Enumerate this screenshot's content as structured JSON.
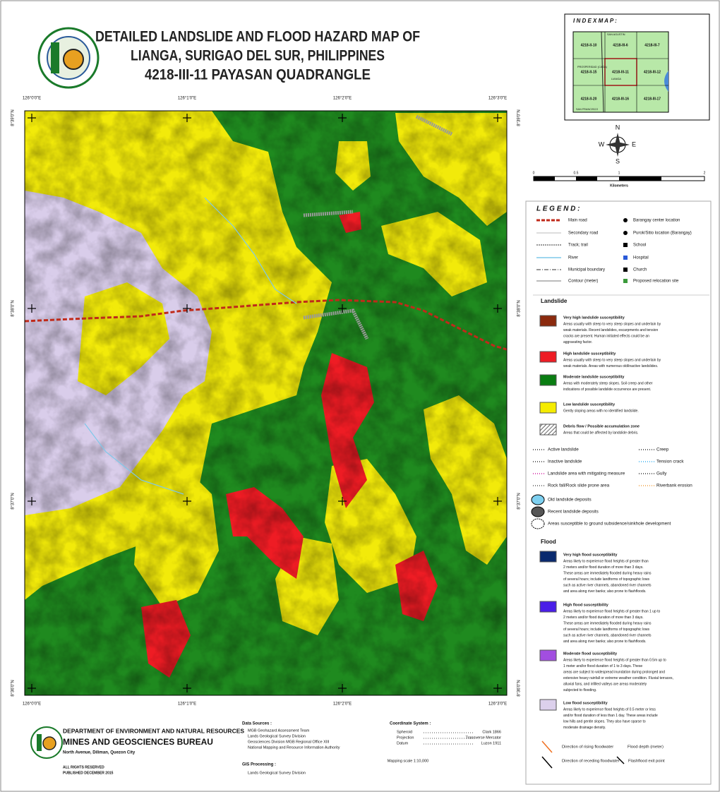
{
  "header": {
    "title_lines": [
      "DETAILED LANDSLIDE AND FLOOD HAZARD MAP OF",
      "LIANGA, SURIGAO DEL SUR, PHILIPPINES",
      "4218-III-11 PAYASAN QUADRANGLE"
    ]
  },
  "index_map": {
    "title": "I N D E X   M A P :",
    "sheets": [
      "4218-II-10",
      "4218-III-6",
      "4218-III-7",
      "4218-II-15",
      "4218-III-11",
      "4218-III-12",
      "4218-II-20",
      "4218-III-16",
      "4218-III-17"
    ],
    "places": [
      "SAN AGUSTIN",
      "PROSPERIDAD (CAGA)",
      "LIANGA",
      "SAN FRANCISCO"
    ]
  },
  "map_grid": {
    "longitudes": [
      "126°0'0\"E",
      "126°1'0\"E",
      "126°2'0\"E",
      "126°3'0\"E"
    ],
    "latitudes": [
      "8°39'0\"N",
      "8°38'0\"N",
      "8°37'0\"N",
      "8°36'0\"N"
    ]
  },
  "compass": {
    "north": "N",
    "east": "E",
    "south": "S",
    "west": "W"
  },
  "scale_bar": {
    "labels": [
      "0",
      "0.5",
      "1",
      "2"
    ],
    "unit": "Kilometers"
  },
  "legend": {
    "title": "L E G E N D :",
    "features": [
      "Main road",
      "Secondary road",
      "Track; trail",
      "River",
      "Municipal boundary",
      "Contour (meter)"
    ],
    "points": [
      "Barangay center location",
      "Purok/Sitio location (Barangay)",
      "School",
      "Hospital",
      "Church",
      "Proposed relocation site"
    ]
  },
  "landslide": {
    "title": "Landslide",
    "items": [
      {
        "color": "#8b2a0e",
        "title": "Very high landslide susceptibility",
        "description": [
          "Areas usually with steep to very steep slopes and underlain by",
          "weak materials. Recent landslides, escarpments and tension",
          "cracks are present. Human initiated effects could be an",
          "aggravating factor."
        ]
      },
      {
        "color": "#ee1c24",
        "title": "High landslide susceptibility",
        "description": [
          "Areas usually with steep to very steep slopes and underlain by",
          "weak materials. Areas with numerous old/inactive landslides."
        ]
      },
      {
        "color": "#0a7d12",
        "title": "Moderate landslide susceptibility",
        "description": [
          "Areas with moderately steep slopes. Soil creep and other",
          "indications of possible landslide occurrence are present."
        ]
      },
      {
        "color": "#f5ec00",
        "title": "Low landslide susceptibility",
        "description": [
          "Gently sloping areas with no identified landslide."
        ]
      },
      {
        "color": "hatch",
        "title": "Debris flow / Possible accumulation zone",
        "description": [
          "Areas that could be affected by landslide debris."
        ]
      }
    ],
    "line_symbols": [
      "Active landslide",
      "Creep",
      "Inactive landslide",
      "Tension crack",
      "Landslide area with mitigating measure",
      "Gully",
      "Rock fall/Rock slide prone area",
      "Riverbank erosion"
    ],
    "deposits": [
      "Old landslide deposits",
      "Recent landslide deposits",
      "Areas susceptible to ground subsidence/sinkhole development"
    ]
  },
  "flood": {
    "title": "Flood",
    "items": [
      {
        "color": "#0a2a6e",
        "title": "Very high flood susceptibility",
        "description": [
          "Areas likely to experience flood heights of greater than",
          "2 meters and/or flood duration of more than 3 days.",
          "These areas are immediately flooded during heavy rains",
          "of several hours; include landforms of topographic lows",
          "such as active river channels, abandoned river channels",
          "and area along river banks; also prone to flashfloods."
        ]
      },
      {
        "color": "#4a1ee8",
        "title": "High flood susceptibility",
        "description": [
          "Areas likely to experience flood heights of greater than 1 up to",
          "2 meters and/or flood duration of more than 3 days.",
          "These areas are immediately flooded during heavy rains",
          "of several hours; include landforms of topographic lows",
          "such as active river channels, abandoned river channels",
          "and area along river banks; also prone to flashfloods."
        ]
      },
      {
        "color": "#a24ee0",
        "title": "Moderate flood susceptibility",
        "description": [
          "Areas likely to experience flood heights of greater than 0.5m up to",
          "1 meter and/or flood duration of 1 to 3 days. These",
          "areas are subject to widespread inundation during prolonged and",
          "extensive heavy rainfall or extreme weather condition. Fluvial terraces,",
          "alluvial fans, and infilled valleys are areas moderately",
          "subjected to flooding."
        ]
      },
      {
        "color": "#dcd0ec",
        "title": "Low flood susceptibility",
        "description": [
          "Areas likely to experience flood heights of 0.5 meter or less",
          "and/or flood duration of less than 1 day. These areas include",
          "low hills and gentle slopes. They also have sparse to",
          "moderate drainage density."
        ]
      }
    ],
    "symbols": [
      "Direction of rising floodwater",
      "Flood depth (meter)",
      "Direction of receding floodwater",
      "Flashflood exit point"
    ]
  },
  "footer": {
    "agency": [
      "DEPARTMENT OF ENVIRONMENT AND NATURAL RESOURCES",
      "MINES AND GEOSCIENCES BUREAU",
      "North Avenue, Diliman, Quezon City"
    ],
    "rights": [
      "ALL RIGHTS RESERVED",
      "PUBLISHED DECEMBER 2015"
    ],
    "data_sources_title": "Data Sources :",
    "data_sources": [
      "MGB Geohazard Assessment Team",
      "Lands Geological Survey Division",
      "Geosciences Division MGB Regional Office XIII",
      "National Mapping and Resource Information Authority"
    ],
    "gis_title": "GIS Processing :",
    "gis": "Lands Geological Survey Division",
    "coordinate_title": "Coordinate System :",
    "coordinate_rows": [
      [
        "Spheroid",
        "Clark 1866"
      ],
      [
        "Projection",
        "Transverse Mercator"
      ],
      [
        "Datum",
        "Luzon 1911"
      ]
    ],
    "mapping_scale": "Mapping scale 1:10,000"
  }
}
